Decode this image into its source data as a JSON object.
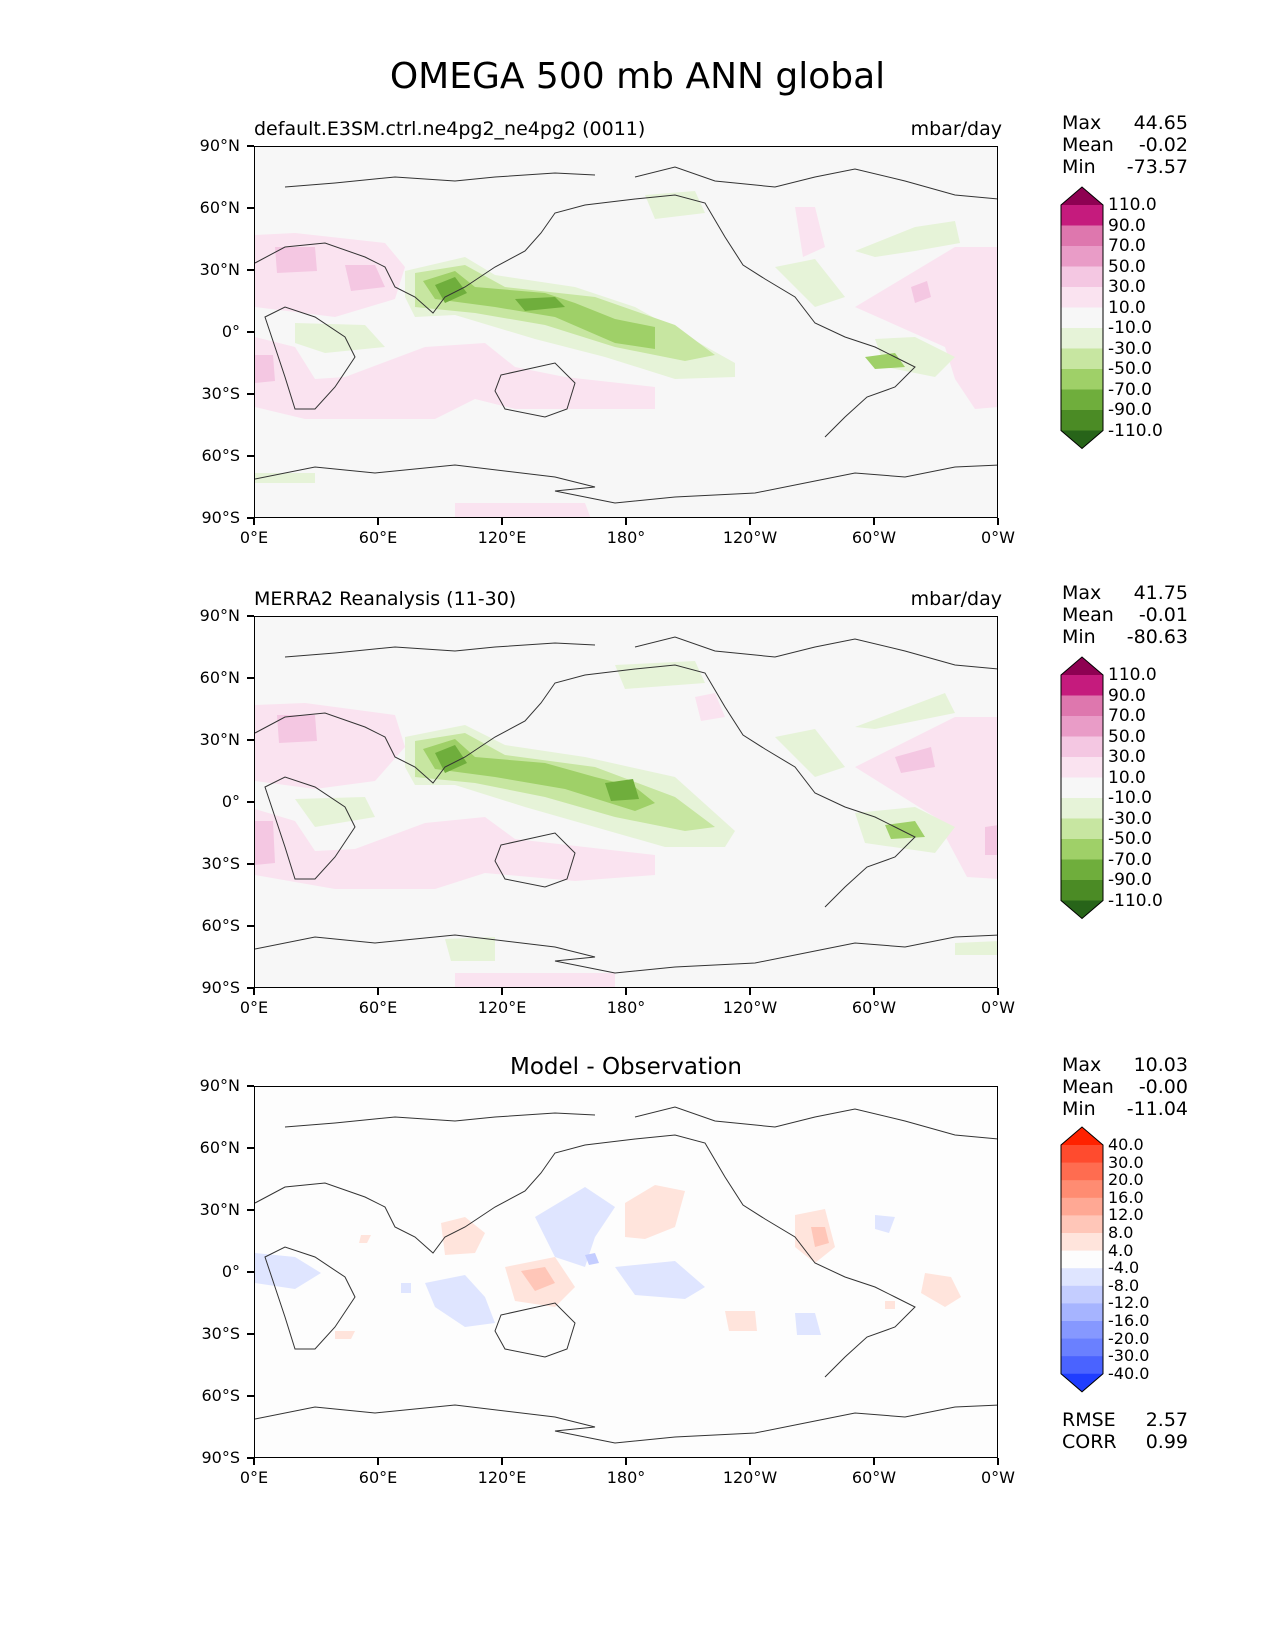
{
  "title": "OMEGA 500 mb ANN global",
  "axes": {
    "lat_labels": [
      "90°N",
      "60°N",
      "30°N",
      "0°",
      "30°S",
      "60°S",
      "90°S"
    ],
    "lon_labels": [
      "0°E",
      "60°E",
      "120°E",
      "180°",
      "120°W",
      "60°W",
      "0°W"
    ]
  },
  "panels": [
    {
      "title_left": "default.E3SM.ctrl.ne4pg2_ne4pg2 (0011)",
      "title_right": "mbar/day",
      "stats": [
        {
          "label": "Max",
          "value": "44.65"
        },
        {
          "label": "Mean",
          "value": "-0.02"
        },
        {
          "label": "Min",
          "value": "-73.57"
        }
      ],
      "colorbar": {
        "labels": [
          "110.0",
          "90.0",
          "70.0",
          "50.0",
          "30.0",
          "10.0",
          "-10.0",
          "-30.0",
          "-50.0",
          "-70.0",
          "-90.0",
          "-110.0"
        ],
        "colors": [
          "#8e0152",
          "#c51b7d",
          "#de77ae",
          "#e99cc7",
          "#f4c7e2",
          "#fae3f0",
          "#f7f7f7",
          "#e6f3d8",
          "#c7e6a1",
          "#9fd068",
          "#6fae3c",
          "#4b8b25",
          "#276419"
        ]
      }
    },
    {
      "title_left": "MERRA2 Reanalysis (11-30)",
      "title_right": "mbar/day",
      "stats": [
        {
          "label": "Max",
          "value": "41.75"
        },
        {
          "label": "Mean",
          "value": "-0.01"
        },
        {
          "label": "Min",
          "value": "-80.63"
        }
      ],
      "colorbar": {
        "labels": [
          "110.0",
          "90.0",
          "70.0",
          "50.0",
          "30.0",
          "10.0",
          "-10.0",
          "-30.0",
          "-50.0",
          "-70.0",
          "-90.0",
          "-110.0"
        ],
        "colors": [
          "#8e0152",
          "#c51b7d",
          "#de77ae",
          "#e99cc7",
          "#f4c7e2",
          "#fae3f0",
          "#f7f7f7",
          "#e6f3d8",
          "#c7e6a1",
          "#9fd068",
          "#6fae3c",
          "#4b8b25",
          "#276419"
        ]
      }
    },
    {
      "title_center": "Model - Observation",
      "stats": [
        {
          "label": "Max",
          "value": "10.03"
        },
        {
          "label": "Mean",
          "value": "-0.00"
        },
        {
          "label": "Min",
          "value": "-11.04"
        }
      ],
      "colorbar": {
        "labels": [
          "40.0",
          "30.0",
          "20.0",
          "16.0",
          "12.0",
          "8.0",
          "4.0",
          "-4.0",
          "-8.0",
          "-12.0",
          "-16.0",
          "-20.0",
          "-30.0",
          "-40.0"
        ],
        "colors": [
          "#ff2200",
          "#ff4b2e",
          "#ff6c50",
          "#ff8c72",
          "#ffa894",
          "#ffc6b8",
          "#ffe4dc",
          "#fdfdfd",
          "#dfe5ff",
          "#c4cdff",
          "#a6b4ff",
          "#8698ff",
          "#6a80ff",
          "#4a63ff",
          "#1f3dff"
        ]
      },
      "metrics": [
        {
          "label": "RMSE",
          "value": "2.57"
        },
        {
          "label": "CORR",
          "value": "0.99"
        }
      ]
    }
  ]
}
